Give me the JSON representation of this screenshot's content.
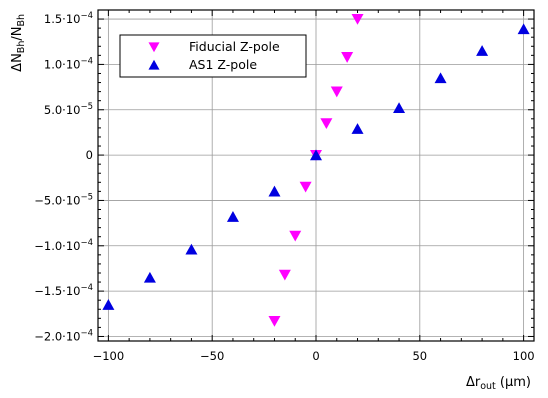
{
  "chart_data": {
    "type": "scatter",
    "xlabel": {
      "main": "Δr",
      "sub": "out",
      "unit": " (μm)"
    },
    "ylabel": {
      "main": "ΔN",
      "sub1": "Bh",
      "mid": "/N",
      "sub2": "Bh"
    },
    "xlim": [
      -105,
      105
    ],
    "ylim": [
      -0.000205,
      0.00016
    ],
    "xticks": [
      -100,
      -50,
      0,
      50,
      100
    ],
    "xtick_labels": [
      "−100",
      "−50",
      "0",
      "50",
      "100"
    ],
    "yticks": [
      0.00015,
      0.0001,
      5e-05,
      0,
      -5e-05,
      -0.0001,
      -0.00015,
      -0.0002
    ],
    "ytick_labels": [
      {
        "m": "1.5",
        "e": "−4"
      },
      {
        "m": "1.0",
        "e": "−4"
      },
      {
        "m": "5.0",
        "e": "−5"
      },
      {
        "m": "0",
        "e": ""
      },
      {
        "m": "−5.0",
        "e": "−5"
      },
      {
        "m": "−1.0",
        "e": "−4"
      },
      {
        "m": "−1.5",
        "e": "−4"
      },
      {
        "m": "−2.0",
        "e": "−4"
      }
    ],
    "grid": true,
    "legend_position": "top-left",
    "series": [
      {
        "name": "Fiducial Z-pole",
        "marker": "triangle-down",
        "color": "#ff00ff",
        "x": [
          -20,
          -15,
          -10,
          -5,
          0,
          5,
          10,
          15,
          20
        ],
        "y": [
          -0.000183,
          -0.000132,
          -8.9e-05,
          -3.5e-05,
          0,
          3.5e-05,
          7e-05,
          0.000108,
          0.00015
        ]
      },
      {
        "name": "AS1 Z-pole",
        "marker": "triangle-up",
        "color": "#0000e0",
        "x": [
          -100,
          -80,
          -60,
          -40,
          -20,
          0,
          20,
          40,
          60,
          80,
          100
        ],
        "y": [
          -0.000165,
          -0.000135,
          -0.000104,
          -6.8e-05,
          -4e-05,
          0,
          2.9e-05,
          5.2e-05,
          8.5e-05,
          0.000115,
          0.000139
        ]
      }
    ]
  }
}
